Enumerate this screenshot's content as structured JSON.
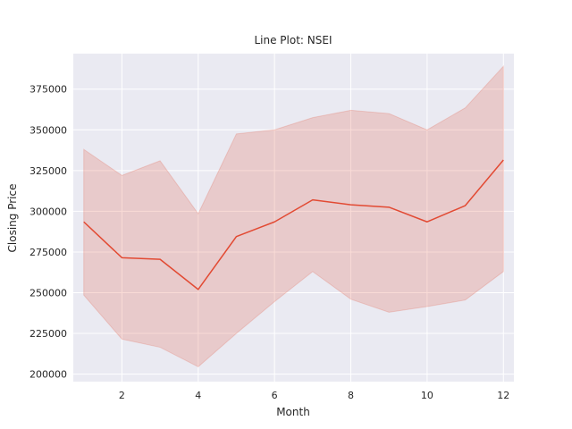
{
  "chart_data": {
    "type": "line",
    "title": "Line Plot: NSEI",
    "xlabel": "Month",
    "ylabel": "Closing Price",
    "xlim": [
      0.725,
      12.275
    ],
    "ylim": [
      195400,
      396800
    ],
    "xticks": [
      2,
      4,
      6,
      8,
      10,
      12
    ],
    "yticks": [
      200000,
      225000,
      250000,
      275000,
      300000,
      325000,
      350000,
      375000
    ],
    "grid": true,
    "legend": false,
    "colors": {
      "line": "#e24a33",
      "band": "#e24a33",
      "background": "#eaeaf2",
      "grid": "#ffffff"
    },
    "series": [
      {
        "x": [
          1,
          2,
          3,
          4,
          5,
          6,
          7,
          8,
          9,
          10,
          11,
          12
        ],
        "values": [
          293500,
          271500,
          270500,
          252000,
          284500,
          293500,
          307000,
          304000,
          302500,
          293500,
          303500,
          331500
        ],
        "ci_upper": [
          338000,
          322000,
          331000,
          298500,
          347500,
          350000,
          357500,
          362000,
          360000,
          350000,
          363500,
          389000
        ],
        "ci_lower": [
          248500,
          221500,
          216500,
          204500,
          225000,
          244500,
          263000,
          246000,
          238000,
          241500,
          245500,
          263000
        ]
      }
    ]
  }
}
